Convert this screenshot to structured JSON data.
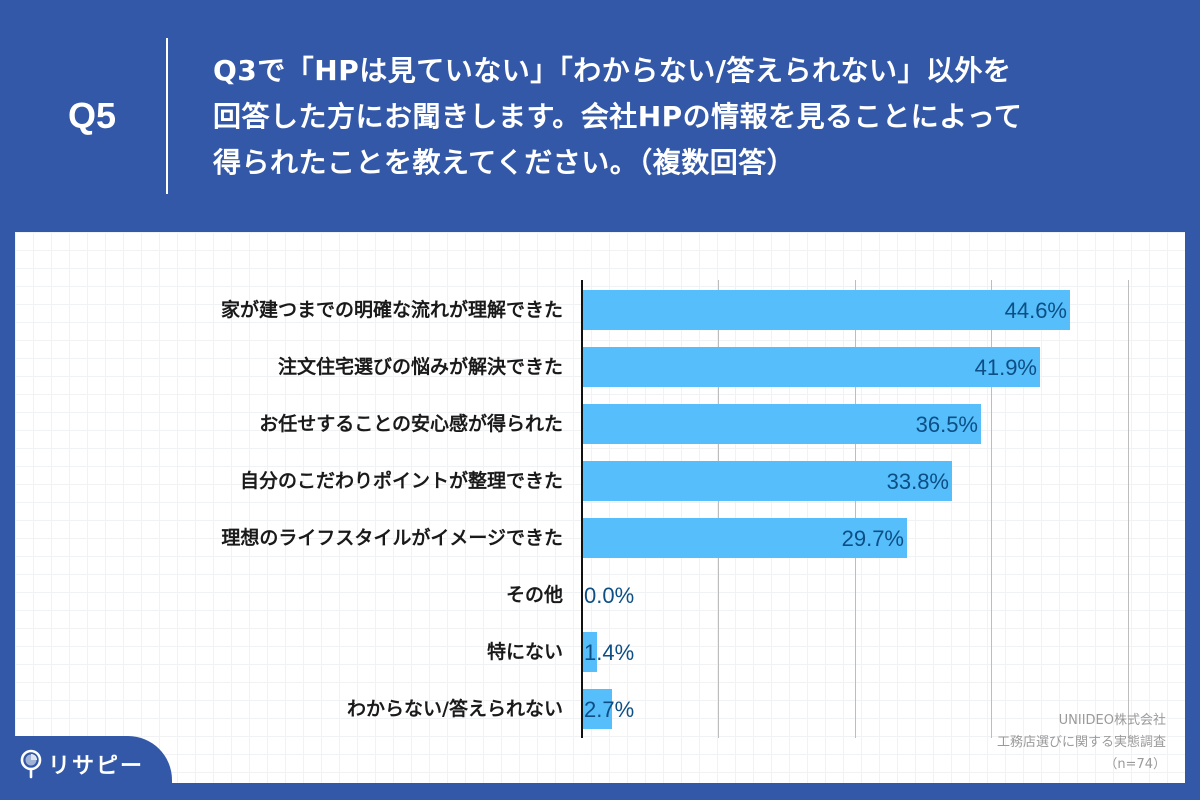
{
  "header": {
    "question_number": "Q5",
    "question_lines": [
      "Q3で「HPは見ていない」「わからない/答えられない」以外を",
      "回答した方にお聞きします。会社HPの情報を見ることによって",
      "得られたことを教えてください。（複数回答）"
    ]
  },
  "colors": {
    "background": "#3358A8",
    "bar": "#55BEFB",
    "value_label": "#0D4F85",
    "gridline": "#BDBDBD",
    "source_text": "#9A9A9A"
  },
  "chart_data": {
    "type": "bar",
    "orientation": "horizontal",
    "title": "Q3で「HPは見ていない」「わからない/答えられない」以外を回答した方にお聞きします。会社HPの情報を見ることによって得られたことを教えてください。（複数回答）",
    "categories": [
      "家が建つまでの明確な流れが理解できた",
      "注文住宅選びの悩みが解決できた",
      "お任せすることの安心感が得られた",
      "自分のこだわりポイントが整理できた",
      "理想のライフスタイルがイメージできた",
      "その他",
      "特にない",
      "わからない/答えられない"
    ],
    "values": [
      44.6,
      41.9,
      36.5,
      33.8,
      29.7,
      0.0,
      1.4,
      2.7
    ],
    "value_labels": [
      "44.6%",
      "41.9%",
      "36.5%",
      "33.8%",
      "29.7%",
      "0.0%",
      "1.4%",
      "2.7%"
    ],
    "unit": "%",
    "xlabel": "",
    "ylabel": "",
    "xlim": [
      0,
      50
    ],
    "gridlines": [
      12.5,
      25,
      37.5,
      50
    ],
    "grid": true,
    "legend": null,
    "n": 74
  },
  "source": {
    "company": "UNIIDEO株式会社",
    "survey": "工務店選びに関する実態調査",
    "sample": "（n=74）"
  },
  "logo": {
    "text": "リサピー",
    "icon": "pin-icon"
  }
}
